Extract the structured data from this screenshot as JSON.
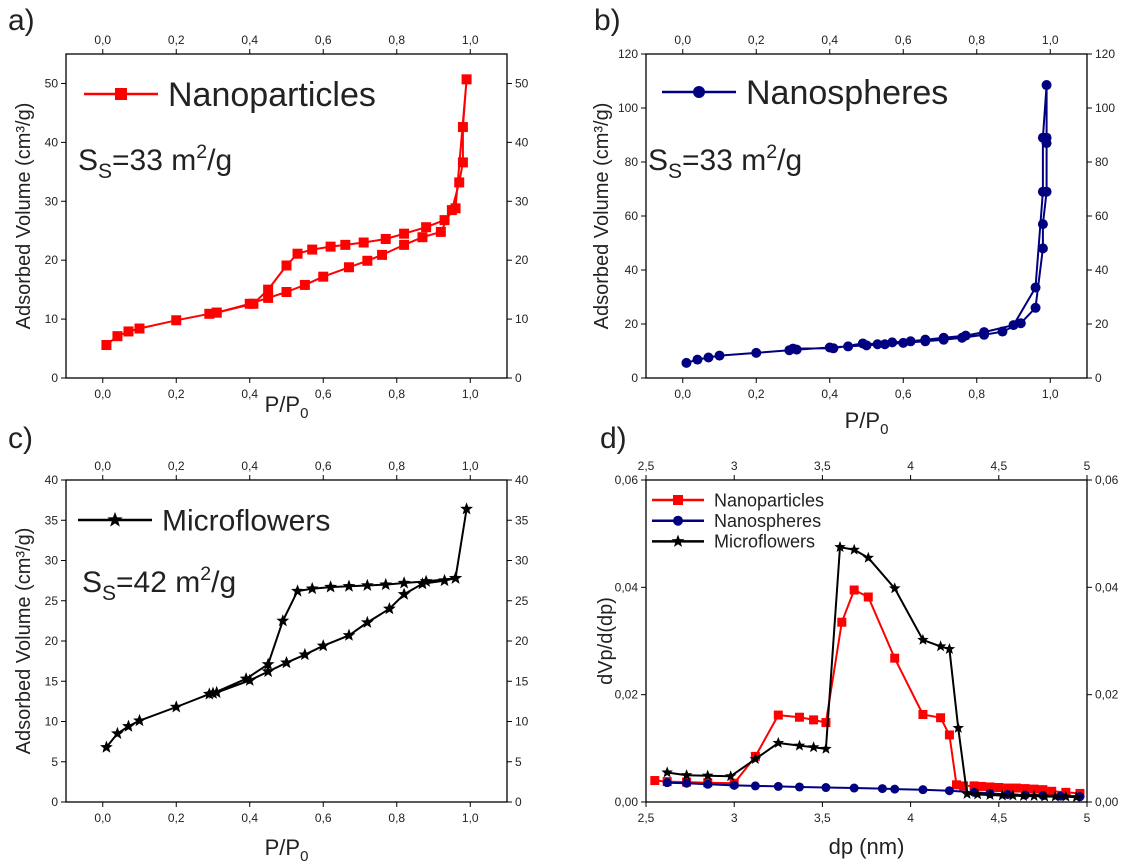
{
  "chart_data": [
    {
      "panel_label": "a)",
      "type": "line",
      "title": "",
      "xlabel": "P/P",
      "xlabel_sub": "0",
      "ylabel": "Adsorbed Volume (cm³/g)",
      "xlim": [
        -0.1,
        1.1
      ],
      "ylim": [
        0,
        55
      ],
      "x_ticks": [
        "0,0",
        "0,2",
        "0,4",
        "0,6",
        "0,8",
        "1,0"
      ],
      "x_tick_values": [
        0,
        0.2,
        0.4,
        0.6,
        0.8,
        1.0
      ],
      "y_ticks": [
        "0",
        "10",
        "20",
        "30",
        "40",
        "50"
      ],
      "y_tick_values": [
        0,
        10,
        20,
        30,
        40,
        50
      ],
      "legend": [
        "Nanoparticles"
      ],
      "legend_position": "top-left",
      "annotation": {
        "main": "S",
        "sub": "S",
        "rest": "=33 m",
        "sup": "2",
        "tail": "/g"
      },
      "series": [
        {
          "name": "Nanoparticles",
          "color": "#ff0000",
          "marker": "square",
          "points": [
            [
              0.01,
              5.6
            ],
            [
              0.04,
              7.1
            ],
            [
              0.07,
              7.9
            ],
            [
              0.1,
              8.4
            ],
            [
              0.2,
              9.8
            ],
            [
              0.29,
              10.9
            ],
            [
              0.31,
              11.1
            ],
            [
              0.4,
              12.6
            ],
            [
              0.45,
              13.6
            ],
            [
              0.5,
              14.6
            ],
            [
              0.55,
              15.8
            ],
            [
              0.6,
              17.2
            ],
            [
              0.67,
              18.8
            ],
            [
              0.72,
              19.9
            ],
            [
              0.76,
              20.9
            ],
            [
              0.82,
              22.6
            ],
            [
              0.87,
              23.9
            ],
            [
              0.92,
              24.8
            ],
            [
              0.95,
              28.5
            ],
            [
              0.97,
              33.2
            ],
            [
              0.98,
              36.6
            ],
            [
              0.98,
              42.6
            ],
            [
              0.99,
              50.7
            ],
            [
              0.96,
              28.8
            ],
            [
              0.93,
              26.8
            ],
            [
              0.88,
              25.6
            ],
            [
              0.82,
              24.5
            ],
            [
              0.77,
              23.6
            ],
            [
              0.71,
              23.0
            ],
            [
              0.66,
              22.6
            ],
            [
              0.62,
              22.3
            ],
            [
              0.57,
              21.8
            ],
            [
              0.53,
              21.1
            ],
            [
              0.5,
              19.1
            ],
            [
              0.45,
              15.0
            ],
            [
              0.41,
              12.6
            ],
            [
              0.31,
              11.1
            ]
          ]
        }
      ]
    },
    {
      "panel_label": "b)",
      "type": "line",
      "title": "",
      "xlabel": "P/P",
      "xlabel_sub": "0",
      "ylabel": "Adsorbed Volume (cm³/g)",
      "xlim": [
        -0.1,
        1.1
      ],
      "ylim": [
        0,
        120
      ],
      "x_ticks": [
        "0,0",
        "0,2",
        "0,4",
        "0,6",
        "0,8",
        "1,0"
      ],
      "x_tick_values": [
        0,
        0.2,
        0.4,
        0.6,
        0.8,
        1.0
      ],
      "y_ticks": [
        "0",
        "20",
        "40",
        "60",
        "80",
        "100",
        "120"
      ],
      "y_tick_values": [
        0,
        20,
        40,
        60,
        80,
        100,
        120
      ],
      "legend": [
        "Nanospheres"
      ],
      "legend_position": "top-left",
      "annotation": {
        "main": "S",
        "sub": "S",
        "rest": "=33 m",
        "sup": "2",
        "tail": "/g"
      },
      "series": [
        {
          "name": "Nanospheres",
          "color": "#000080",
          "marker": "circle",
          "points": [
            [
              0.01,
              5.6
            ],
            [
              0.04,
              6.8
            ],
            [
              0.07,
              7.6
            ],
            [
              0.1,
              8.3
            ],
            [
              0.2,
              9.3
            ],
            [
              0.29,
              10.3
            ],
            [
              0.31,
              10.5
            ],
            [
              0.4,
              11.3
            ],
            [
              0.45,
              11.7
            ],
            [
              0.5,
              12.1
            ],
            [
              0.55,
              12.5
            ],
            [
              0.6,
              13.0
            ],
            [
              0.66,
              13.6
            ],
            [
              0.71,
              14.2
            ],
            [
              0.76,
              14.9
            ],
            [
              0.82,
              16.0
            ],
            [
              0.87,
              17.2
            ],
            [
              0.92,
              20.3
            ],
            [
              0.96,
              26.0
            ],
            [
              0.98,
              48.0
            ],
            [
              0.98,
              57.0
            ],
            [
              0.99,
              69.0
            ],
            [
              0.99,
              87.0
            ],
            [
              0.99,
              89.0
            ],
            [
              0.99,
              108.5
            ],
            [
              0.98,
              89.0
            ],
            [
              0.98,
              69.0
            ],
            [
              0.96,
              33.5
            ],
            [
              0.9,
              19.6
            ],
            [
              0.82,
              17.0
            ],
            [
              0.77,
              15.7
            ],
            [
              0.71,
              14.9
            ],
            [
              0.66,
              14.2
            ],
            [
              0.62,
              13.6
            ],
            [
              0.57,
              13.2
            ],
            [
              0.53,
              12.5
            ],
            [
              0.49,
              12.8
            ],
            [
              0.41,
              11.0
            ],
            [
              0.3,
              10.9
            ]
          ]
        }
      ]
    },
    {
      "panel_label": "c)",
      "type": "line",
      "title": "",
      "xlabel": "P/P",
      "xlabel_sub": "0",
      "ylabel": "Adsorbed Volume (cm³/g)",
      "xlim": [
        -0.1,
        1.1
      ],
      "ylim": [
        0,
        40
      ],
      "x_ticks": [
        "0,0",
        "0,2",
        "0,4",
        "0,6",
        "0,8",
        "1,0"
      ],
      "x_tick_values": [
        0,
        0.2,
        0.4,
        0.6,
        0.8,
        1.0
      ],
      "y_ticks": [
        "0",
        "5",
        "10",
        "15",
        "20",
        "25",
        "30",
        "35",
        "40"
      ],
      "y_tick_values": [
        0,
        5,
        10,
        15,
        20,
        25,
        30,
        35,
        40
      ],
      "legend": [
        "Microflowers"
      ],
      "legend_position": "top-left",
      "annotation": {
        "main": "S",
        "sub": "S",
        "rest": "=42 m",
        "sup": "2",
        "tail": "/g"
      },
      "series": [
        {
          "name": "Microflowers",
          "color": "#000000",
          "marker": "star",
          "points": [
            [
              0.01,
              6.8
            ],
            [
              0.04,
              8.5
            ],
            [
              0.07,
              9.4
            ],
            [
              0.1,
              10.1
            ],
            [
              0.2,
              11.8
            ],
            [
              0.29,
              13.4
            ],
            [
              0.31,
              13.6
            ],
            [
              0.4,
              15.1
            ],
            [
              0.45,
              16.2
            ],
            [
              0.5,
              17.3
            ],
            [
              0.55,
              18.3
            ],
            [
              0.6,
              19.4
            ],
            [
              0.67,
              20.7
            ],
            [
              0.72,
              22.3
            ],
            [
              0.78,
              24.0
            ],
            [
              0.82,
              25.8
            ],
            [
              0.87,
              27.1
            ],
            [
              0.93,
              27.5
            ],
            [
              0.96,
              27.8
            ],
            [
              0.99,
              36.4
            ],
            [
              0.96,
              27.8
            ],
            [
              0.88,
              27.4
            ],
            [
              0.82,
              27.2
            ],
            [
              0.77,
              27.0
            ],
            [
              0.72,
              26.9
            ],
            [
              0.67,
              26.8
            ],
            [
              0.62,
              26.7
            ],
            [
              0.57,
              26.5
            ],
            [
              0.53,
              26.2
            ],
            [
              0.49,
              22.5
            ],
            [
              0.45,
              17.1
            ],
            [
              0.39,
              15.3
            ],
            [
              0.3,
              13.5
            ]
          ]
        }
      ]
    },
    {
      "panel_label": "d)",
      "type": "line",
      "title": "",
      "xlabel": "dp (nm)",
      "ylabel": "dVp/d(dp)",
      "xlim": [
        2.5,
        5.0
      ],
      "ylim": [
        0,
        0.06
      ],
      "x_ticks": [
        "2,5",
        "3",
        "3,5",
        "4",
        "4,5",
        "5"
      ],
      "x_tick_values": [
        2.5,
        3.0,
        3.5,
        4.0,
        4.5,
        5.0
      ],
      "y_ticks": [
        "0,00",
        "0,02",
        "0,04",
        "0,06"
      ],
      "y_tick_values": [
        0,
        0.02,
        0.04,
        0.06
      ],
      "legend": [
        "Nanoparticles",
        "Nanospheres",
        "Microflowers"
      ],
      "legend_position": "top-left",
      "series": [
        {
          "name": "Nanoparticles",
          "color": "#ff0000",
          "marker": "square",
          "points": [
            [
              2.55,
              0.004
            ],
            [
              2.62,
              0.0038
            ],
            [
              2.73,
              0.0037
            ],
            [
              2.85,
              0.0036
            ],
            [
              3.0,
              0.0035
            ],
            [
              3.12,
              0.0085
            ],
            [
              3.25,
              0.0162
            ],
            [
              3.37,
              0.0158
            ],
            [
              3.45,
              0.0153
            ],
            [
              3.52,
              0.0148
            ],
            [
              3.61,
              0.0335
            ],
            [
              3.68,
              0.0395
            ],
            [
              3.76,
              0.0382
            ],
            [
              3.91,
              0.0268
            ],
            [
              4.07,
              0.0163
            ],
            [
              4.17,
              0.0157
            ],
            [
              4.22,
              0.0125
            ],
            [
              4.26,
              0.0032
            ],
            [
              4.3,
              0.003
            ],
            [
              4.36,
              0.003
            ],
            [
              4.4,
              0.0029
            ],
            [
              4.45,
              0.0028
            ],
            [
              4.5,
              0.0027
            ],
            [
              4.55,
              0.0026
            ],
            [
              4.6,
              0.0026
            ],
            [
              4.65,
              0.0025
            ],
            [
              4.7,
              0.0024
            ],
            [
              4.75,
              0.0023
            ],
            [
              4.8,
              0.002
            ],
            [
              4.88,
              0.0018
            ],
            [
              4.96,
              0.0016
            ]
          ]
        },
        {
          "name": "Nanospheres",
          "color": "#000080",
          "marker": "circle",
          "points": [
            [
              2.62,
              0.0036
            ],
            [
              2.73,
              0.0035
            ],
            [
              2.85,
              0.0033
            ],
            [
              3.0,
              0.0031
            ],
            [
              3.12,
              0.003
            ],
            [
              3.25,
              0.0029
            ],
            [
              3.37,
              0.0028
            ],
            [
              3.52,
              0.0027
            ],
            [
              3.68,
              0.0026
            ],
            [
              3.84,
              0.0025
            ],
            [
              3.91,
              0.0024
            ],
            [
              4.07,
              0.0023
            ],
            [
              4.22,
              0.0021
            ],
            [
              4.36,
              0.0018
            ],
            [
              4.45,
              0.0016
            ],
            [
              4.55,
              0.0014
            ],
            [
              4.65,
              0.0013
            ],
            [
              4.75,
              0.0012
            ],
            [
              4.85,
              0.0011
            ],
            [
              4.96,
              0.001
            ]
          ]
        },
        {
          "name": "Microflowers",
          "color": "#000000",
          "marker": "star",
          "points": [
            [
              2.62,
              0.0055
            ],
            [
              2.73,
              0.005
            ],
            [
              2.85,
              0.0049
            ],
            [
              2.98,
              0.0048
            ],
            [
              3.12,
              0.008
            ],
            [
              3.25,
              0.011
            ],
            [
              3.37,
              0.0105
            ],
            [
              3.45,
              0.0102
            ],
            [
              3.52,
              0.0099
            ],
            [
              3.6,
              0.0475
            ],
            [
              3.68,
              0.047
            ],
            [
              3.76,
              0.0455
            ],
            [
              3.91,
              0.0398
            ],
            [
              4.07,
              0.0302
            ],
            [
              4.17,
              0.029
            ],
            [
              4.22,
              0.0285
            ],
            [
              4.27,
              0.0138
            ],
            [
              4.32,
              0.0015
            ],
            [
              4.38,
              0.0014
            ],
            [
              4.45,
              0.0013
            ],
            [
              4.52,
              0.0012
            ],
            [
              4.58,
              0.0012
            ],
            [
              4.64,
              0.0011
            ],
            [
              4.7,
              0.0011
            ],
            [
              4.76,
              0.001
            ],
            [
              4.82,
              0.001
            ],
            [
              4.88,
              0.001
            ],
            [
              4.94,
              0.0009
            ]
          ]
        }
      ]
    }
  ]
}
